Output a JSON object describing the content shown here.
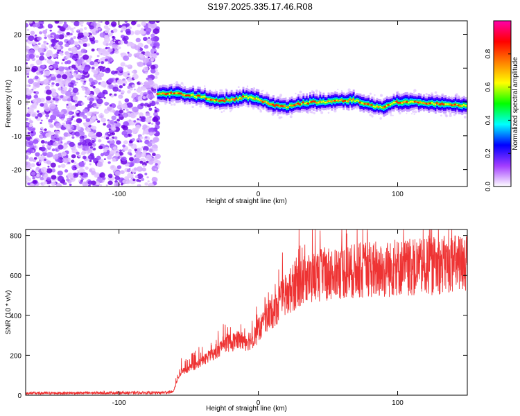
{
  "title": "S197.2025.335.17.46.R08",
  "chart_data": [
    {
      "type": "heatmap",
      "xlabel": "Height of straight line (km)",
      "ylabel": "Frequency (Hz)",
      "xlim": [
        -167,
        150
      ],
      "ylim": [
        -25,
        24
      ],
      "xticks": [
        -100,
        0,
        100
      ],
      "yticks": [
        -20,
        -10,
        0,
        10,
        20
      ],
      "noise_region_x": [
        -167,
        -72
      ],
      "signal_start_x": -72,
      "signal_track": {
        "x": [
          -72,
          -60,
          -50,
          -40,
          -30,
          -20,
          -10,
          0,
          10,
          20,
          30,
          40,
          50,
          60,
          70,
          80,
          90,
          100,
          110,
          120,
          130,
          140,
          150
        ],
        "frequency": [
          2.5,
          2.5,
          2.0,
          1.5,
          0.5,
          0.5,
          1.5,
          1.0,
          -1.0,
          -1.5,
          -0.5,
          0.0,
          0.0,
          0.5,
          0.5,
          -1.0,
          -1.5,
          0.0,
          0.0,
          -0.5,
          -0.5,
          -1.0,
          -1.0
        ]
      },
      "colorbar": {
        "label": "Normalized spectral amplitude",
        "ticks": [
          "0.0",
          "0.2",
          "0.4",
          "0.6",
          "0.8"
        ],
        "range": [
          0,
          1
        ],
        "colors": [
          "#ffffff",
          "#a23cff",
          "#0000ff",
          "#00ffff",
          "#00ff00",
          "#ffff00",
          "#ff8000",
          "#ff0000",
          "#ff00aa"
        ]
      }
    },
    {
      "type": "line",
      "xlabel": "Height of straight line (km)",
      "ylabel": "SNR (10 * v/v)",
      "xlim": [
        -167,
        150
      ],
      "ylim": [
        0,
        830
      ],
      "xticks": [
        -100,
        0,
        100
      ],
      "yticks": [
        0,
        200,
        400,
        600,
        800
      ],
      "color": "#ee3333",
      "envelope": {
        "x": [
          -167,
          -100,
          -70,
          -61,
          -58,
          -55,
          -50,
          -45,
          -40,
          -35,
          -30,
          -25,
          -20,
          -15,
          -10,
          -5,
          0,
          5,
          10,
          15,
          20,
          25,
          30,
          40,
          50,
          60,
          70,
          80,
          90,
          100,
          110,
          120,
          130,
          140,
          150
        ],
        "y": [
          10,
          12,
          12,
          18,
          80,
          120,
          130,
          150,
          170,
          200,
          210,
          260,
          260,
          280,
          270,
          280,
          320,
          380,
          420,
          460,
          500,
          540,
          570,
          590,
          610,
          620,
          620,
          630,
          620,
          640,
          640,
          640,
          650,
          660,
          660
        ]
      }
    }
  ]
}
